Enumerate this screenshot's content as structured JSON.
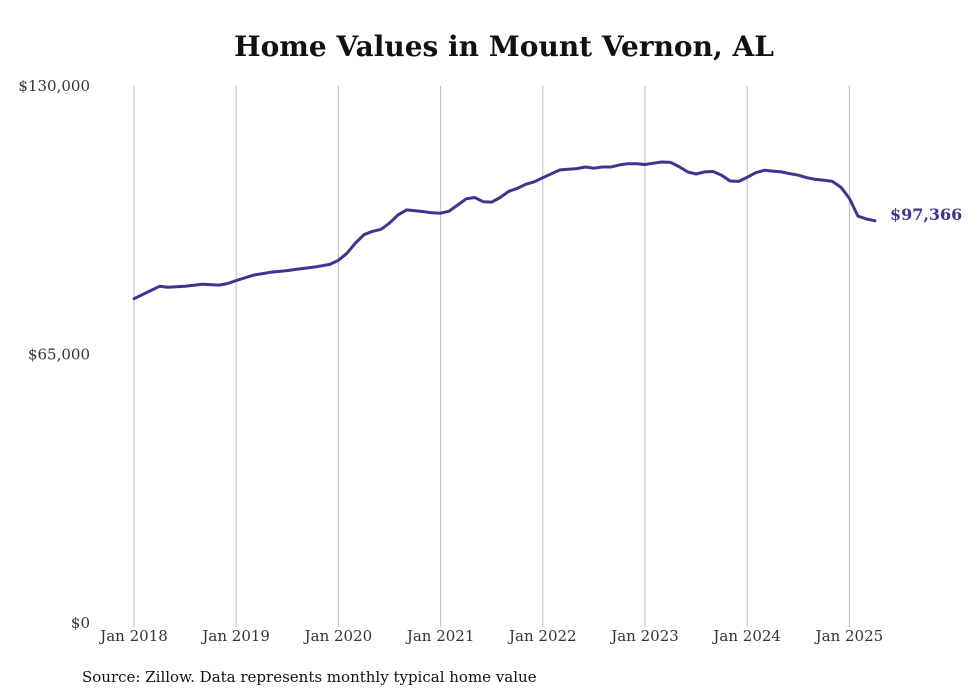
{
  "chart_data": {
    "type": "line",
    "title": "Home Values in Mount Vernon, AL",
    "source": "Source: Zillow. Data represents monthly typical home value",
    "ylim": [
      0,
      130000
    ],
    "y_ticks": [
      {
        "value": 0,
        "label": "$0"
      },
      {
        "value": 65000,
        "label": "$65,000"
      },
      {
        "value": 130000,
        "label": "$130,000"
      }
    ],
    "x_ticks": [
      {
        "value": 2018,
        "label": "Jan 2018"
      },
      {
        "value": 2019,
        "label": "Jan 2019"
      },
      {
        "value": 2020,
        "label": "Jan 2020"
      },
      {
        "value": 2021,
        "label": "Jan 2021"
      },
      {
        "value": 2022,
        "label": "Jan 2022"
      },
      {
        "value": 2023,
        "label": "Jan 2023"
      },
      {
        "value": 2024,
        "label": "Jan 2024"
      },
      {
        "value": 2025,
        "label": "Jan 2025"
      }
    ],
    "grid": "vertical",
    "line_color": "#3f3590",
    "end_label": "$97,366",
    "series": [
      {
        "x": [
          2018.0,
          2018.125,
          2018.25,
          2018.333,
          2018.5,
          2018.667,
          2018.833,
          2018.917,
          2019.0,
          2019.167,
          2019.333,
          2019.5,
          2019.583,
          2019.75,
          2019.917,
          2020.0,
          2020.083,
          2020.167,
          2020.25,
          2020.333,
          2020.417,
          2020.5,
          2020.583,
          2020.667,
          2020.75,
          2020.833,
          2020.917,
          2021.0,
          2021.083,
          2021.167,
          2021.25,
          2021.333,
          2021.417,
          2021.5,
          2021.583,
          2021.667,
          2021.75,
          2021.833,
          2021.917,
          2022.0,
          2022.167,
          2022.333,
          2022.417,
          2022.5,
          2022.583,
          2022.667,
          2022.75,
          2022.833,
          2022.917,
          2023.0,
          2023.083,
          2023.167,
          2023.25,
          2023.333,
          2023.417,
          2023.5,
          2023.583,
          2023.667,
          2023.75,
          2023.833,
          2023.917,
          2024.0,
          2024.083,
          2024.167,
          2024.25,
          2024.333,
          2024.417,
          2024.5,
          2024.583,
          2024.667,
          2024.75,
          2024.833,
          2024.917,
          2025.0,
          2025.083,
          2025.167,
          2025.25
        ],
        "y": [
          78500,
          80000,
          81500,
          81300,
          81500,
          82000,
          81800,
          82200,
          82900,
          84200,
          84900,
          85300,
          85600,
          86100,
          86800,
          87800,
          89500,
          92000,
          94000,
          94800,
          95300,
          96800,
          98800,
          100000,
          99800,
          99600,
          99300,
          99200,
          99700,
          101200,
          102700,
          103000,
          102000,
          101900,
          103000,
          104500,
          105200,
          106200,
          106800,
          107800,
          109700,
          110000,
          110400,
          110100,
          110400,
          110400,
          110900,
          111200,
          111200,
          111000,
          111300,
          111600,
          111500,
          110500,
          109200,
          108700,
          109200,
          109300,
          108400,
          107000,
          106900,
          107900,
          109000,
          109600,
          109400,
          109200,
          108800,
          108400,
          107800,
          107400,
          107200,
          106900,
          105500,
          102800,
          98500,
          97800,
          97366
        ]
      }
    ]
  }
}
